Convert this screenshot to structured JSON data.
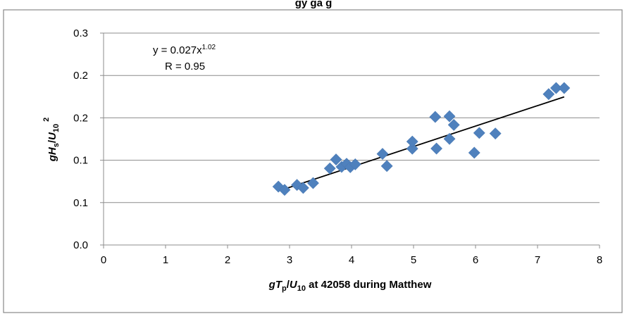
{
  "chart_data": {
    "type": "scatter",
    "title_fragment": "gy  ga  g",
    "xlabel": "gTp/U10 at 42058 during Matthew",
    "ylabel": "gHs/U10 2",
    "xlim": [
      0,
      8
    ],
    "ylim": [
      0.0,
      0.3
    ],
    "x_ticks": [
      "0",
      "1",
      "2",
      "3",
      "4",
      "5",
      "6",
      "7",
      "8"
    ],
    "y_ticks": [
      "0.0",
      "0.1",
      "0.1",
      "0.2",
      "0.2",
      "0.3"
    ],
    "grid": "horizontal",
    "legend": "none",
    "marker_color": "#4f81bd",
    "trendline_color": "#000000",
    "annotation": {
      "equation_prefix": "y = 0.027x",
      "equation_exponent": "1.02",
      "r_text": "R = 0.95"
    },
    "series": [
      {
        "points": [
          [
            2.82,
            0.0826
          ],
          [
            2.92,
            0.078
          ],
          [
            3.12,
            0.085
          ],
          [
            3.22,
            0.0808
          ],
          [
            3.38,
            0.0876
          ],
          [
            3.65,
            0.1084
          ],
          [
            3.75,
            0.121
          ],
          [
            3.84,
            0.1106
          ],
          [
            3.92,
            0.115
          ],
          [
            3.98,
            0.1102
          ],
          [
            4.06,
            0.1142
          ],
          [
            4.5,
            0.129
          ],
          [
            4.57,
            0.1118
          ],
          [
            4.98,
            0.1364
          ],
          [
            4.98,
            0.1464
          ],
          [
            5.35,
            0.1813
          ],
          [
            5.37,
            0.1365
          ],
          [
            5.58,
            0.1822
          ],
          [
            5.58,
            0.1502
          ],
          [
            5.65,
            0.17
          ],
          [
            5.98,
            0.1306
          ],
          [
            6.06,
            0.1586
          ],
          [
            6.32,
            0.1578
          ],
          [
            7.18,
            0.2136
          ],
          [
            7.3,
            0.2222
          ],
          [
            7.43,
            0.2222
          ]
        ]
      }
    ],
    "trendline": {
      "x": [
        2.88,
        7.43
      ],
      "y": [
        0.0781,
        0.2097
      ]
    }
  }
}
